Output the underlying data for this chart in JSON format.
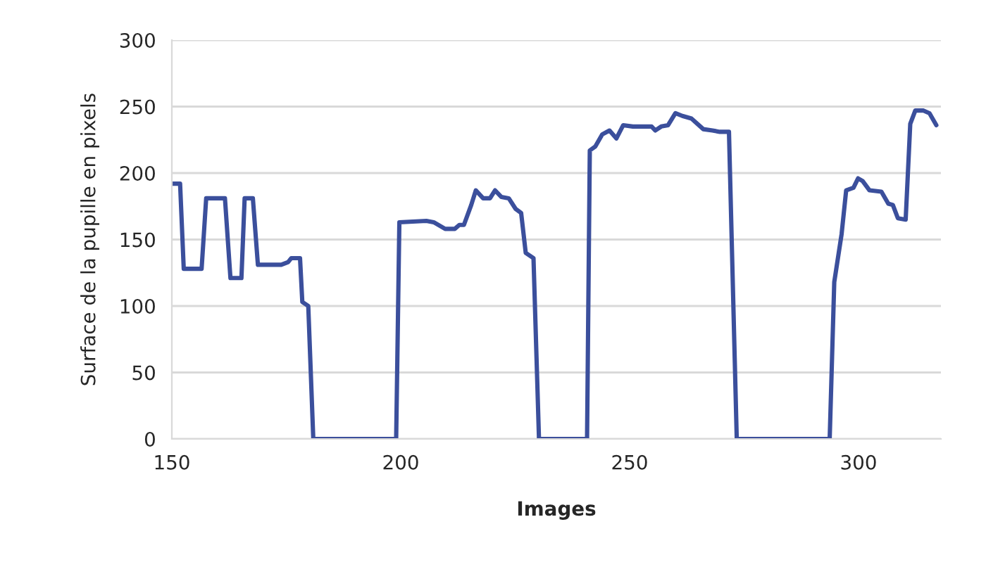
{
  "chart_data": {
    "type": "line",
    "xlabel": "Images",
    "ylabel": "Surface de la pupille en pixels",
    "x": [
      150,
      151.8,
      152.6,
      156.5,
      157.5,
      161.6,
      162.8,
      165.2,
      165.9,
      167.7,
      168.8,
      173.9,
      175.4,
      176.1,
      178,
      178.5,
      179.8,
      180.9,
      199,
      199.7,
      205.6,
      207.2,
      209.7,
      211.8,
      212.8,
      213.8,
      215.4,
      216.4,
      218,
      219.5,
      220.6,
      222,
      223.6,
      225.1,
      226.3,
      227.3,
      229,
      230.2,
      240.7,
      241.3,
      242.5,
      244,
      245.6,
      247.1,
      248.6,
      250.7,
      254.8,
      255.6,
      256.9,
      258.4,
      260,
      261.5,
      263.5,
      266.1,
      268.1,
      269.7,
      271.7,
      273.4,
      293.7,
      294.7,
      296.3,
      297.3,
      298.9,
      299.9,
      300.9,
      302.4,
      305,
      306.5,
      307.5,
      308.6,
      310.3,
      311.3,
      312.4,
      314.2,
      315.5,
      317
    ],
    "series": [
      {
        "color": "#3b4f9c",
        "values": [
          192,
          192,
          128,
          128,
          181,
          181,
          121,
          121,
          181,
          181,
          131,
          131,
          133,
          136,
          136,
          103,
          100,
          0,
          0,
          163,
          164,
          163,
          158,
          158,
          161,
          161,
          176,
          187,
          181,
          181,
          187,
          182,
          181,
          173,
          170,
          140,
          136,
          0,
          0,
          217,
          220,
          229,
          232,
          226,
          236,
          235,
          235,
          232,
          235,
          236,
          245,
          243,
          241,
          233,
          232,
          231,
          231,
          0,
          0,
          118,
          154,
          187,
          189,
          196,
          194,
          187,
          186,
          177,
          176,
          166,
          165,
          237,
          247,
          247,
          245,
          236
        ]
      }
    ],
    "xlim": [
      150,
      318
    ],
    "xticks": [
      150,
      200,
      250,
      300
    ],
    "ylim": [
      0,
      300
    ],
    "yticks": [
      0,
      50,
      100,
      150,
      200,
      250,
      300
    ],
    "grid": "y",
    "marker": "none",
    "line_style": "solid"
  }
}
